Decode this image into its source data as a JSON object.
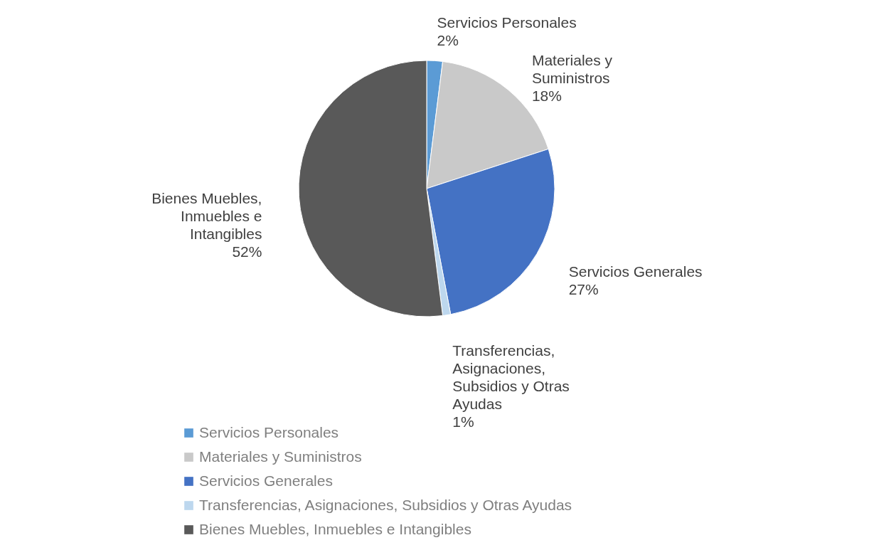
{
  "chart_data": {
    "type": "pie",
    "categories": [
      "Servicios Personales",
      "Materiales y Suministros",
      "Servicios Generales",
      "Transferencias, Asignaciones, Subsidios y Otras Ayudas",
      "Bienes Muebles, Inmuebles e Intangibles"
    ],
    "values": [
      2,
      18,
      27,
      1,
      52
    ],
    "value_labels": [
      "2%",
      "18%",
      "27%",
      "1%",
      "52%"
    ],
    "colors": [
      "#5b9bd5",
      "#c9c9c9",
      "#4472c4",
      "#bdd7ee",
      "#595959"
    ],
    "legend": "bottom left"
  }
}
